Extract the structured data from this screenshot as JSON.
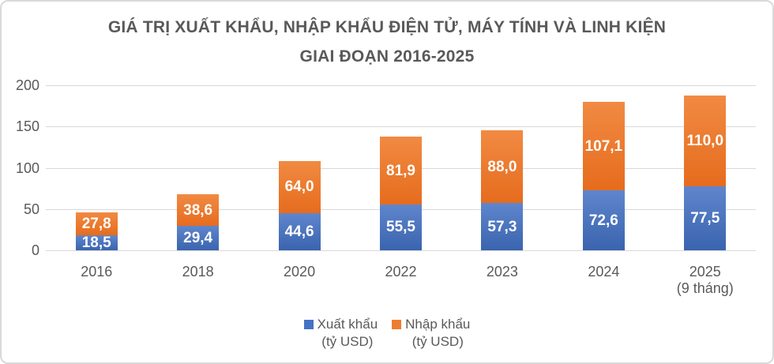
{
  "chart_data": {
    "type": "bar",
    "stacked": true,
    "title_line1": "GIÁ TRỊ XUẤT KHẨU, NHẬP KHẨU ĐIỆN TỬ, MÁY TÍNH VÀ LINH KIỆN",
    "title_line2": "GIAI ĐOẠN 2016-2025",
    "categories": [
      "2016",
      "2018",
      "2020",
      "2022",
      "2023",
      "2024",
      "2025"
    ],
    "category_sublabels": [
      "",
      "",
      "",
      "",
      "",
      "",
      "(9 tháng)"
    ],
    "series": [
      {
        "name": "Xuất khẩu (tỷ USD)",
        "name_line1": "Xuất khẩu",
        "name_line2": "(tỷ USD)",
        "color": "#4472C4",
        "values": [
          18.5,
          29.4,
          44.6,
          55.5,
          57.3,
          72.6,
          77.5
        ],
        "labels": [
          "18,5",
          "29,4",
          "44,6",
          "55,5",
          "57,3",
          "72,6",
          "77,5"
        ]
      },
      {
        "name": "Nhập khẩu (tỷ USD)",
        "name_line1": "Nhập khẩu",
        "name_line2": "(tỷ USD)",
        "color": "#ED7D31",
        "values": [
          27.8,
          38.6,
          64.0,
          81.9,
          88.0,
          107.1,
          110.0
        ],
        "labels": [
          "27,8",
          "38,6",
          "64,0",
          "81,9",
          "88,0",
          "107,1",
          "110,0"
        ]
      }
    ],
    "y_ticks": [
      0,
      50,
      100,
      150,
      200
    ],
    "ylim": [
      0,
      200
    ],
    "grid": true,
    "legend_position": "bottom"
  },
  "colors": {
    "export_blue": "#4472C4",
    "import_orange": "#ED7D31",
    "gridline": "#d9d9d9",
    "axis_text": "#595959",
    "title_text": "#595959",
    "data_label_text": "#ffffff",
    "frame_border": "#d9d9d9"
  }
}
